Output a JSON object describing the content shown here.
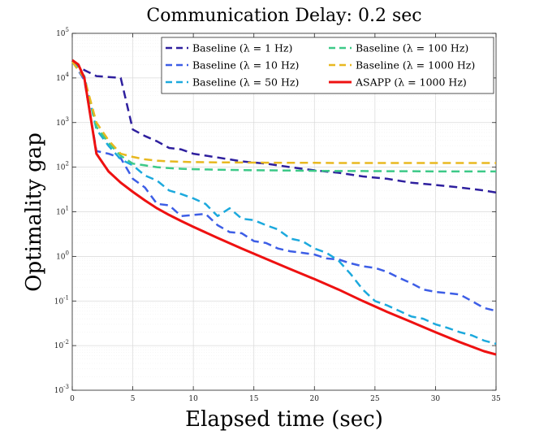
{
  "chart_data": {
    "type": "line",
    "title": "Communication Delay: 0.2 sec",
    "xlabel": "Elapsed time (sec)",
    "ylabel": "Optimality gap",
    "xlim": [
      0,
      35
    ],
    "ylim_log10": [
      -3,
      5
    ],
    "yscale": "log",
    "grid": true,
    "legend_position": "top-right",
    "x_ticks": [
      0,
      5,
      10,
      15,
      20,
      25,
      30,
      35
    ],
    "x_tick_labels": [
      "0",
      "5",
      "10",
      "15",
      "20",
      "25",
      "30",
      "35"
    ],
    "y_ticks": [
      {
        "base": "10",
        "exp": "-3"
      },
      {
        "base": "10",
        "exp": "-2"
      },
      {
        "base": "10",
        "exp": "-1"
      },
      {
        "base": "10",
        "exp": "0"
      },
      {
        "base": "10",
        "exp": "1"
      },
      {
        "base": "10",
        "exp": "2"
      },
      {
        "base": "10",
        "exp": "3"
      },
      {
        "base": "10",
        "exp": "4"
      },
      {
        "base": "10",
        "exp": "5"
      }
    ],
    "series": [
      {
        "name": "Baseline (λ = 1 Hz)",
        "color": "#2e1f9e",
        "dashed": true,
        "x": [
          0,
          1,
          2,
          3,
          4,
          5,
          6,
          7,
          8,
          9,
          10,
          12,
          14,
          16,
          18,
          20,
          22,
          24,
          26,
          28,
          30,
          32,
          34,
          35
        ],
        "y": [
          22000,
          15000,
          11000,
          10500,
          10000,
          700,
          500,
          380,
          270,
          250,
          200,
          165,
          135,
          120,
          100,
          85,
          75,
          62,
          55,
          45,
          40,
          35,
          30,
          27
        ]
      },
      {
        "name": "Baseline (λ = 10 Hz)",
        "color": "#3d5ee6",
        "dashed": true,
        "x": [
          0,
          1,
          2,
          3,
          4,
          5,
          6,
          7,
          8,
          9,
          10,
          11,
          12,
          13,
          14,
          15,
          16,
          17,
          18,
          19,
          20,
          21,
          22,
          23,
          24,
          25,
          26,
          27,
          28,
          29,
          30,
          31,
          32,
          33,
          34,
          35
        ],
        "y": [
          24000,
          9000,
          230,
          200,
          160,
          55,
          35,
          15,
          14,
          8,
          8.5,
          9,
          5,
          3.5,
          3.3,
          2.2,
          2,
          1.5,
          1.3,
          1.2,
          1.1,
          0.9,
          0.85,
          0.7,
          0.6,
          0.55,
          0.45,
          0.33,
          0.25,
          0.18,
          0.16,
          0.15,
          0.14,
          0.1,
          0.07,
          0.06
        ]
      },
      {
        "name": "Baseline (λ = 50 Hz)",
        "color": "#1ca9dd",
        "dashed": true,
        "x": [
          0,
          1,
          2,
          3,
          4,
          5,
          6,
          7,
          8,
          9,
          10,
          11,
          12,
          13,
          14,
          15,
          16,
          17,
          18,
          19,
          20,
          21,
          22,
          23,
          24,
          25,
          26,
          27,
          28,
          29,
          30,
          31,
          32,
          33,
          34,
          35
        ],
        "y": [
          24000,
          11000,
          700,
          300,
          150,
          110,
          65,
          50,
          30,
          25,
          20,
          15,
          8,
          12,
          7,
          6.5,
          5,
          4,
          2.5,
          2.2,
          1.5,
          1.2,
          0.8,
          0.4,
          0.18,
          0.1,
          0.08,
          0.06,
          0.045,
          0.04,
          0.03,
          0.025,
          0.02,
          0.017,
          0.013,
          0.011
        ]
      },
      {
        "name": "Baseline (λ = 100 Hz)",
        "color": "#3dc988",
        "dashed": true,
        "x": [
          0,
          1,
          2,
          3,
          4,
          5,
          6,
          7,
          8,
          9,
          10,
          12,
          14,
          16,
          18,
          20,
          22,
          24,
          26,
          28,
          30,
          32,
          34,
          35
        ],
        "y": [
          23000,
          10000,
          800,
          350,
          180,
          120,
          110,
          100,
          95,
          92,
          90,
          88,
          86,
          85,
          84,
          83,
          82,
          82,
          81,
          81,
          80,
          80,
          80,
          80
        ]
      },
      {
        "name": "Baseline (λ = 1000 Hz)",
        "color": "#e8b820",
        "dashed": true,
        "x": [
          0,
          1,
          2,
          3,
          4,
          5,
          6,
          7,
          8,
          9,
          10,
          12,
          14,
          16,
          18,
          20,
          22,
          24,
          26,
          28,
          30,
          32,
          34,
          35
        ],
        "y": [
          23000,
          10000,
          1000,
          400,
          200,
          170,
          150,
          140,
          135,
          132,
          130,
          128,
          127,
          126,
          125,
          125,
          124,
          124,
          124,
          124,
          124,
          124,
          124,
          124
        ]
      },
      {
        "name": "ASAPP (λ = 1000 Hz)",
        "color": "#ee1111",
        "dashed": false,
        "x": [
          0,
          0.5,
          1,
          2,
          3,
          4,
          5,
          6,
          7,
          8,
          9,
          10,
          12,
          14,
          16,
          18,
          20,
          22,
          24,
          26,
          28,
          30,
          32,
          34,
          35
        ],
        "y": [
          25000,
          20000,
          10000,
          200,
          80,
          45,
          28,
          18,
          12,
          8.5,
          6.2,
          4.6,
          2.6,
          1.5,
          0.88,
          0.52,
          0.31,
          0.18,
          0.1,
          0.057,
          0.034,
          0.02,
          0.012,
          0.0075,
          0.0063
        ]
      }
    ]
  }
}
